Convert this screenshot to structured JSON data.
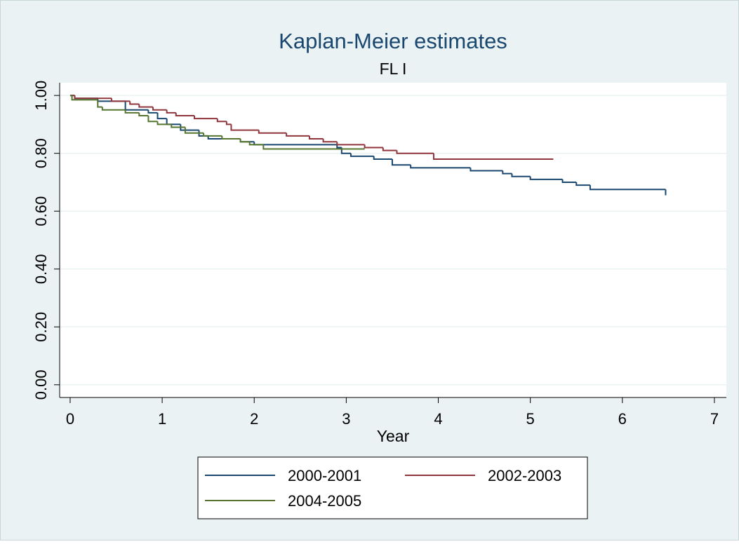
{
  "chart_data": {
    "type": "line",
    "step": true,
    "title": "Kaplan-Meier estimates",
    "subtitle": "FL I",
    "x_label": "Year",
    "xlim": [
      -0.114,
      7.13
    ],
    "ylim": [
      -0.044,
      1.044
    ],
    "xticks": [
      0,
      1,
      2,
      3,
      4,
      5,
      6,
      7
    ],
    "yticks": [
      {
        "value": 0,
        "label": "0.00"
      },
      {
        "value": 0.2,
        "label": "0.20"
      },
      {
        "value": 0.4,
        "label": "0.40"
      },
      {
        "value": 0.6,
        "label": "0.60"
      },
      {
        "value": 0.8,
        "label": "0.80"
      },
      {
        "value": 1,
        "label": "1.00"
      }
    ],
    "grid": true,
    "series": [
      {
        "name": "2000-2001",
        "color": "#1a476f",
        "x": [
          0,
          0.05,
          0.3,
          0.6,
          0.85,
          0.95,
          1.05,
          1.2,
          1.4,
          1.5,
          1.85,
          2.0,
          2.9,
          2.95,
          3.05,
          3.3,
          3.5,
          3.7,
          4.35,
          4.7,
          4.8,
          5.0,
          5.35,
          5.5,
          5.65,
          6.47
        ],
        "values": [
          1.0,
          0.99,
          0.98,
          0.95,
          0.94,
          0.92,
          0.9,
          0.88,
          0.86,
          0.85,
          0.84,
          0.83,
          0.82,
          0.8,
          0.79,
          0.78,
          0.76,
          0.75,
          0.74,
          0.73,
          0.72,
          0.71,
          0.7,
          0.69,
          0.675,
          0.655
        ]
      },
      {
        "name": "2002-2003",
        "color": "#90353b",
        "x": [
          0,
          0.05,
          0.45,
          0.65,
          0.75,
          0.9,
          1.05,
          1.15,
          1.35,
          1.6,
          1.7,
          1.75,
          2.05,
          2.35,
          2.6,
          2.75,
          2.9,
          3.2,
          3.4,
          3.55,
          3.95,
          5.25
        ],
        "values": [
          1.0,
          0.99,
          0.98,
          0.97,
          0.96,
          0.95,
          0.94,
          0.93,
          0.92,
          0.91,
          0.9,
          0.88,
          0.87,
          0.86,
          0.85,
          0.84,
          0.83,
          0.82,
          0.81,
          0.8,
          0.78,
          0.78
        ]
      },
      {
        "name": "2004-2005",
        "color": "#55752f",
        "x": [
          0,
          0.02,
          0.3,
          0.35,
          0.6,
          0.75,
          0.85,
          0.95,
          1.1,
          1.25,
          1.45,
          1.65,
          1.85,
          1.95,
          2.1,
          3.2
        ],
        "values": [
          1.0,
          0.985,
          0.96,
          0.95,
          0.94,
          0.93,
          0.91,
          0.9,
          0.89,
          0.87,
          0.86,
          0.85,
          0.84,
          0.83,
          0.815,
          0.815
        ]
      }
    ]
  }
}
